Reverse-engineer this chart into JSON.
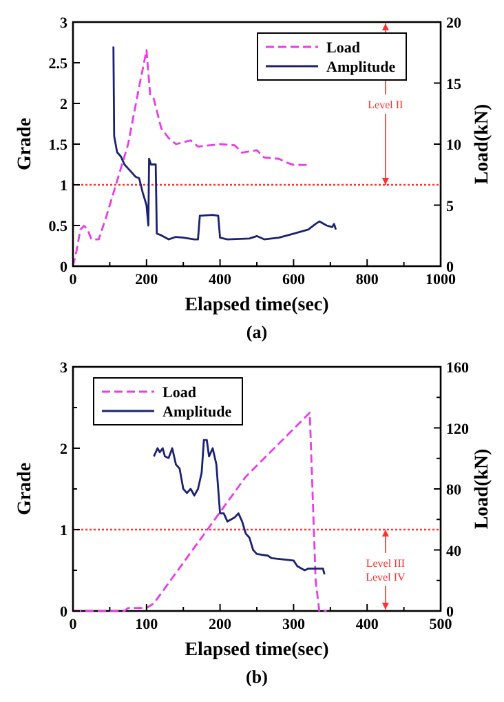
{
  "chart_data": [
    {
      "type": "line",
      "title": "(a)",
      "xlabel": "Elapsed time(sec)",
      "ylabel": "Grade",
      "y2label": "Load(kN)",
      "xlim": [
        0,
        1000
      ],
      "ylim": [
        0,
        3
      ],
      "y2lim": [
        0,
        20
      ],
      "xticks": [
        0,
        {
          "value": 100,
          "label": null
        },
        200,
        {
          "value": 300,
          "label": null
        },
        400,
        {
          "value": 500,
          "label": null
        },
        600,
        {
          "value": 700,
          "label": null
        },
        800,
        {
          "value": 900,
          "label": null
        },
        1000
      ],
      "yticks": [
        0,
        0.5,
        1,
        1.5,
        2,
        2.5,
        3
      ],
      "y2ticks": [
        0,
        5,
        10,
        15,
        20
      ],
      "legend": "top right",
      "series": [
        {
          "name": "Load",
          "color": "#e83ce8",
          "axis": "y2",
          "line_style": "dashed",
          "x": [
            0,
            10,
            20,
            30,
            40,
            50,
            70,
            90,
            110,
            150,
            180,
            200,
            210,
            220,
            240,
            260,
            280,
            320,
            340,
            400,
            440,
            460,
            500,
            520,
            560,
            580,
            600,
            640
          ],
          "values": [
            0,
            1.3,
            3,
            3.3,
            3,
            2.2,
            2.2,
            4,
            6,
            10,
            14.7,
            17.7,
            14,
            13.7,
            11.3,
            10.5,
            10,
            10.3,
            9.8,
            10,
            9.9,
            9.3,
            9.5,
            8.9,
            8.8,
            8.5,
            8.3,
            8.3
          ]
        },
        {
          "name": "Amplitude",
          "color": "#1c2270",
          "line_style": "solid",
          "x": [
            110,
            112,
            120,
            130,
            140,
            150,
            170,
            180,
            190,
            200,
            205,
            207,
            212,
            225,
            228,
            240,
            260,
            280,
            300,
            330,
            340,
            345,
            380,
            395,
            400,
            420,
            480,
            500,
            520,
            560,
            600,
            640,
            660,
            670,
            690,
            705,
            710,
            715
          ],
          "values": [
            2.7,
            1.6,
            1.4,
            1.35,
            1.25,
            1.2,
            1.1,
            1.08,
            0.9,
            0.75,
            0.5,
            1.32,
            1.25,
            1.25,
            0.4,
            0.38,
            0.33,
            0.36,
            0.35,
            0.33,
            0.33,
            0.62,
            0.63,
            0.62,
            0.35,
            0.33,
            0.34,
            0.37,
            0.33,
            0.35,
            0.4,
            0.45,
            0.52,
            0.55,
            0.5,
            0.48,
            0.52,
            0.45
          ]
        }
      ],
      "ref_lines": [
        {
          "axis": "y",
          "value": 1,
          "color": "#ff3030",
          "line_style": "dotted"
        }
      ],
      "annotations": [
        "Level II"
      ]
    },
    {
      "type": "line",
      "title": "(b)",
      "xlabel": "Elapsed time(sec)",
      "ylabel": "Grade",
      "y2label": "Load(kN)",
      "xlim": [
        0,
        500
      ],
      "ylim": [
        0,
        3
      ],
      "y2lim": [
        0,
        160
      ],
      "xticks": [
        0,
        {
          "value": 50,
          "label": null
        },
        100,
        {
          "value": 150,
          "label": null
        },
        200,
        {
          "value": 250,
          "label": null
        },
        300,
        {
          "value": 350,
          "label": null
        },
        400,
        {
          "value": 450,
          "label": null
        },
        500
      ],
      "yticks": [
        0,
        {
          "value": 0.5,
          "label": null
        },
        1,
        {
          "value": 1.5,
          "label": null
        },
        2,
        {
          "value": 2.5,
          "label": null
        },
        3
      ],
      "y2ticks": [
        0,
        {
          "value": 20,
          "label": null
        },
        40,
        {
          "value": 60,
          "label": null
        },
        80,
        {
          "value": 100,
          "label": null
        },
        120,
        {
          "value": 140,
          "label": null
        },
        160
      ],
      "legend": "top left",
      "series": [
        {
          "name": "Load",
          "color": "#e83ce8",
          "axis": "y2",
          "line_style": "dashed",
          "x": [
            0,
            50,
            70,
            75,
            100,
            110,
            235,
            322,
            326,
            330,
            335,
            345
          ],
          "values": [
            0,
            0,
            0,
            2,
            2,
            5,
            88,
            130,
            75,
            20,
            0,
            0
          ]
        },
        {
          "name": "Amplitude",
          "color": "#1c2270",
          "line_style": "solid",
          "x": [
            110,
            115,
            118,
            122,
            125,
            130,
            135,
            140,
            145,
            150,
            155,
            160,
            165,
            170,
            175,
            178,
            182,
            185,
            190,
            195,
            200,
            205,
            210,
            220,
            225,
            230,
            235,
            240,
            245,
            250,
            265,
            270,
            300,
            305,
            315,
            320,
            340,
            342
          ],
          "values": [
            1.9,
            2,
            1.95,
            2,
            1.9,
            1.88,
            2,
            1.8,
            1.75,
            1.5,
            1.45,
            1.5,
            1.42,
            1.5,
            1.7,
            2.1,
            2.1,
            1.9,
            2,
            1.8,
            1.2,
            1.2,
            1.1,
            1.15,
            1.2,
            1.1,
            0.95,
            0.9,
            0.75,
            0.7,
            0.68,
            0.65,
            0.62,
            0.55,
            0.5,
            0.52,
            0.52,
            0.45
          ]
        }
      ],
      "ref_lines": [
        {
          "axis": "y",
          "value": 1,
          "color": "#ff3030",
          "line_style": "dotted"
        }
      ],
      "annotations": [
        "Level III",
        "Level IV"
      ]
    }
  ]
}
